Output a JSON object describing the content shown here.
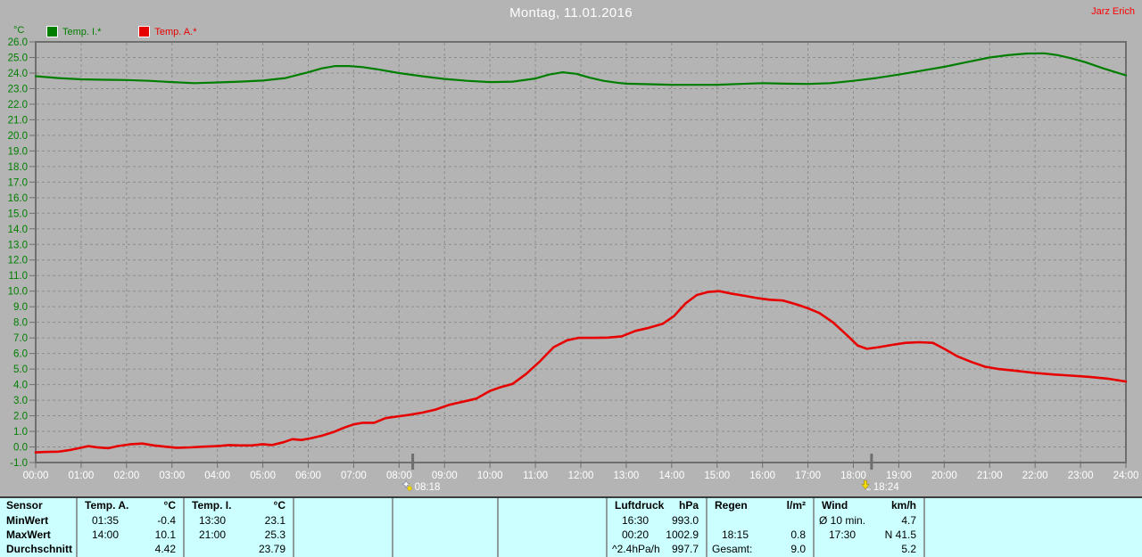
{
  "header": {
    "title": "Montag, 11.01.2016",
    "user": "Jarz Erich"
  },
  "colors": {
    "bg": "#b4b4b4",
    "table_bg": "#ccffff",
    "temp_i": "#007e00",
    "temp_a": "#e60000",
    "title_text": "#ffffff",
    "user_text": "#ff0000",
    "axis_text": "#007e00",
    "tick_text": "#ffffff",
    "grid": "#8d8d8d",
    "frame": "#6e6e6e"
  },
  "legend": {
    "axis_unit": "°C",
    "items": [
      {
        "label": "Temp. I.*",
        "color": "#007e00"
      },
      {
        "label": "Temp. A.*",
        "color": "#e60000"
      }
    ]
  },
  "chart_data": {
    "type": "line",
    "title": "Montag, 11.01.2016",
    "ylabel": "°C",
    "xlim": [
      0,
      24
    ],
    "ylim": [
      -1,
      26
    ],
    "y_tick_step": 1,
    "grid": true,
    "x_ticks": [
      "00:00",
      "01:00",
      "02:00",
      "03:00",
      "04:00",
      "05:00",
      "06:00",
      "07:00",
      "08:00",
      "09:00",
      "10:00",
      "11:00",
      "12:00",
      "13:00",
      "14:00",
      "15:00",
      "16:00",
      "17:00",
      "18:00",
      "19:00",
      "20:00",
      "21:00",
      "22:00",
      "23:00",
      "24:00"
    ],
    "markers": [
      {
        "icon": "sunrise-icon",
        "time": "08:18",
        "t": 8.3
      },
      {
        "icon": "sunset-icon",
        "time": "18:24",
        "t": 18.4
      }
    ],
    "series": [
      {
        "name": "Temp. I.*",
        "color": "#007e00",
        "points": [
          [
            0,
            23.8
          ],
          [
            0.5,
            23.68
          ],
          [
            1,
            23.6
          ],
          [
            1.5,
            23.57
          ],
          [
            2,
            23.55
          ],
          [
            2.5,
            23.5
          ],
          [
            3,
            23.42
          ],
          [
            3.5,
            23.35
          ],
          [
            4,
            23.4
          ],
          [
            4.5,
            23.45
          ],
          [
            5,
            23.52
          ],
          [
            5.5,
            23.68
          ],
          [
            6,
            24.05
          ],
          [
            6.3,
            24.3
          ],
          [
            6.6,
            24.45
          ],
          [
            6.9,
            24.45
          ],
          [
            7.2,
            24.38
          ],
          [
            7.5,
            24.25
          ],
          [
            8,
            24.0
          ],
          [
            8.5,
            23.8
          ],
          [
            9,
            23.62
          ],
          [
            9.5,
            23.5
          ],
          [
            10,
            23.42
          ],
          [
            10.5,
            23.45
          ],
          [
            11,
            23.65
          ],
          [
            11.3,
            23.9
          ],
          [
            11.6,
            24.05
          ],
          [
            11.9,
            23.95
          ],
          [
            12.2,
            23.7
          ],
          [
            12.5,
            23.5
          ],
          [
            12.8,
            23.38
          ],
          [
            13,
            23.32
          ],
          [
            13.5,
            23.28
          ],
          [
            14,
            23.25
          ],
          [
            14.5,
            23.25
          ],
          [
            15,
            23.25
          ],
          [
            15.5,
            23.3
          ],
          [
            16,
            23.35
          ],
          [
            16.5,
            23.32
          ],
          [
            17,
            23.3
          ],
          [
            17.5,
            23.35
          ],
          [
            18,
            23.5
          ],
          [
            18.5,
            23.68
          ],
          [
            19,
            23.9
          ],
          [
            19.5,
            24.15
          ],
          [
            20,
            24.4
          ],
          [
            20.5,
            24.7
          ],
          [
            21,
            25.0
          ],
          [
            21.4,
            25.15
          ],
          [
            21.8,
            25.25
          ],
          [
            22.2,
            25.27
          ],
          [
            22.5,
            25.15
          ],
          [
            22.8,
            24.95
          ],
          [
            23.1,
            24.7
          ],
          [
            23.5,
            24.3
          ],
          [
            24,
            23.85
          ]
        ]
      },
      {
        "name": "Temp. A.*",
        "color": "#e60000",
        "points": [
          [
            0,
            -0.35
          ],
          [
            0.25,
            -0.32
          ],
          [
            0.5,
            -0.3
          ],
          [
            0.75,
            -0.2
          ],
          [
            1.0,
            -0.05
          ],
          [
            1.15,
            0.05
          ],
          [
            1.35,
            -0.02
          ],
          [
            1.6,
            -0.08
          ],
          [
            1.8,
            0.05
          ],
          [
            2.1,
            0.18
          ],
          [
            2.35,
            0.22
          ],
          [
            2.6,
            0.1
          ],
          [
            2.85,
            0.02
          ],
          [
            3.1,
            -0.05
          ],
          [
            3.4,
            -0.03
          ],
          [
            3.7,
            0.02
          ],
          [
            4.0,
            0.05
          ],
          [
            4.25,
            0.12
          ],
          [
            4.5,
            0.1
          ],
          [
            4.75,
            0.1
          ],
          [
            5.0,
            0.18
          ],
          [
            5.2,
            0.12
          ],
          [
            5.45,
            0.3
          ],
          [
            5.65,
            0.5
          ],
          [
            5.85,
            0.45
          ],
          [
            6.05,
            0.55
          ],
          [
            6.3,
            0.72
          ],
          [
            6.55,
            0.95
          ],
          [
            6.8,
            1.25
          ],
          [
            7.0,
            1.45
          ],
          [
            7.2,
            1.55
          ],
          [
            7.45,
            1.55
          ],
          [
            7.7,
            1.85
          ],
          [
            7.95,
            1.95
          ],
          [
            8.2,
            2.05
          ],
          [
            8.5,
            2.2
          ],
          [
            8.8,
            2.4
          ],
          [
            9.1,
            2.7
          ],
          [
            9.4,
            2.9
          ],
          [
            9.7,
            3.1
          ],
          [
            10.0,
            3.6
          ],
          [
            10.25,
            3.85
          ],
          [
            10.5,
            4.05
          ],
          [
            10.8,
            4.7
          ],
          [
            11.1,
            5.5
          ],
          [
            11.4,
            6.4
          ],
          [
            11.7,
            6.85
          ],
          [
            11.95,
            7.0
          ],
          [
            12.3,
            7.0
          ],
          [
            12.6,
            7.02
          ],
          [
            12.9,
            7.1
          ],
          [
            13.2,
            7.45
          ],
          [
            13.5,
            7.65
          ],
          [
            13.8,
            7.9
          ],
          [
            14.05,
            8.4
          ],
          [
            14.3,
            9.2
          ],
          [
            14.55,
            9.75
          ],
          [
            14.8,
            9.95
          ],
          [
            15.05,
            10.0
          ],
          [
            15.3,
            9.85
          ],
          [
            15.6,
            9.7
          ],
          [
            15.9,
            9.55
          ],
          [
            16.15,
            9.45
          ],
          [
            16.45,
            9.4
          ],
          [
            16.75,
            9.15
          ],
          [
            17.0,
            8.9
          ],
          [
            17.25,
            8.6
          ],
          [
            17.55,
            8.0
          ],
          [
            17.85,
            7.2
          ],
          [
            18.1,
            6.5
          ],
          [
            18.3,
            6.3
          ],
          [
            18.55,
            6.4
          ],
          [
            18.85,
            6.55
          ],
          [
            19.15,
            6.68
          ],
          [
            19.45,
            6.72
          ],
          [
            19.75,
            6.68
          ],
          [
            20.0,
            6.3
          ],
          [
            20.3,
            5.8
          ],
          [
            20.6,
            5.45
          ],
          [
            20.9,
            5.15
          ],
          [
            21.2,
            5.0
          ],
          [
            21.6,
            4.88
          ],
          [
            22.0,
            4.75
          ],
          [
            22.4,
            4.65
          ],
          [
            22.8,
            4.58
          ],
          [
            23.2,
            4.5
          ],
          [
            23.6,
            4.38
          ],
          [
            24,
            4.2
          ]
        ]
      }
    ]
  },
  "table": {
    "row_labels": [
      "Sensor",
      "MinWert",
      "MaxWert",
      "Durchschnitt"
    ],
    "columns": [
      {
        "name": "temp-a",
        "header": "Temp. A.",
        "unit": "°C",
        "rows": [
          [
            "01:35",
            "-0.4"
          ],
          [
            "14:00",
            "10.1"
          ],
          [
            "",
            "4.42"
          ]
        ]
      },
      {
        "name": "temp-i",
        "header": "Temp. I.",
        "unit": "°C",
        "rows": [
          [
            "13:30",
            "23.1"
          ],
          [
            "21:00",
            "25.3"
          ],
          [
            "",
            "23.79"
          ]
        ]
      },
      {
        "name": "spacer-1",
        "header": "",
        "unit": "",
        "rows": [
          [
            "",
            ""
          ],
          [
            "",
            ""
          ],
          [
            "",
            ""
          ]
        ]
      },
      {
        "name": "spacer-2",
        "header": "",
        "unit": "",
        "rows": [
          [
            "",
            ""
          ],
          [
            "",
            ""
          ],
          [
            "",
            ""
          ]
        ]
      },
      {
        "name": "spacer-3",
        "header": "",
        "unit": "",
        "rows": [
          [
            "",
            ""
          ],
          [
            "",
            ""
          ],
          [
            "",
            ""
          ]
        ]
      },
      {
        "name": "luftdruck",
        "header": "Luftdruck",
        "unit": "hPa",
        "rows": [
          [
            "16:30",
            "993.0"
          ],
          [
            "00:20",
            "1002.9"
          ],
          [
            "^2.4hPa/h",
            "997.7"
          ]
        ]
      },
      {
        "name": "regen",
        "header": "Regen",
        "unit": "l/m²",
        "rows": [
          [
            "",
            ""
          ],
          [
            "18:15",
            "0.8"
          ],
          [
            "Gesamt:",
            "9.0"
          ]
        ]
      },
      {
        "name": "wind",
        "header": "Wind",
        "unit": "km/h",
        "rows": [
          [
            "Ø 10 min.",
            "4.7"
          ],
          [
            "17:30",
            "N 41.5"
          ],
          [
            "",
            "5.2"
          ]
        ]
      },
      {
        "name": "spacer-4",
        "header": "",
        "unit": "",
        "rows": [
          [
            "",
            ""
          ],
          [
            "",
            ""
          ],
          [
            "",
            ""
          ]
        ]
      }
    ]
  }
}
